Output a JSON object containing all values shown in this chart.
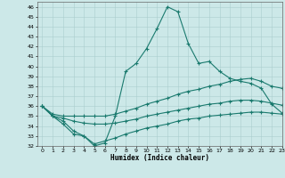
{
  "xlabel": "Humidex (Indice chaleur)",
  "xlim": [
    -0.5,
    23
  ],
  "ylim": [
    32,
    46.5
  ],
  "xticks": [
    0,
    1,
    2,
    3,
    4,
    5,
    6,
    7,
    8,
    9,
    10,
    11,
    12,
    13,
    14,
    15,
    16,
    17,
    18,
    19,
    20,
    21,
    22,
    23
  ],
  "yticks": [
    32,
    33,
    34,
    35,
    36,
    37,
    38,
    39,
    40,
    41,
    42,
    43,
    44,
    45,
    46
  ],
  "bg_color": "#cce8e8",
  "line_color": "#1a7a6e",
  "grid_color": "#aacece",
  "lines": [
    {
      "x": [
        0,
        1,
        2,
        3,
        4,
        5,
        6,
        7,
        8,
        9,
        10,
        11,
        12,
        13,
        14,
        15,
        16,
        17,
        18,
        19,
        20,
        21,
        22,
        23
      ],
      "y": [
        36.0,
        35.0,
        34.2,
        33.2,
        33.0,
        32.0,
        32.3,
        35.0,
        39.5,
        40.3,
        41.8,
        43.8,
        46.0,
        45.5,
        42.3,
        40.3,
        40.5,
        39.5,
        38.8,
        38.5,
        38.3,
        37.8,
        36.2,
        35.3
      ]
    },
    {
      "x": [
        0,
        1,
        2,
        3,
        4,
        5,
        6,
        7,
        8,
        9,
        10,
        11,
        12,
        13,
        14,
        15,
        16,
        17,
        18,
        19,
        20,
        21,
        22,
        23
      ],
      "y": [
        36.0,
        35.2,
        35.0,
        35.0,
        35.0,
        35.0,
        35.0,
        35.2,
        35.5,
        35.8,
        36.2,
        36.5,
        36.8,
        37.2,
        37.5,
        37.7,
        38.0,
        38.2,
        38.5,
        38.7,
        38.8,
        38.5,
        38.0,
        37.8
      ]
    },
    {
      "x": [
        0,
        1,
        2,
        3,
        4,
        5,
        6,
        7,
        8,
        9,
        10,
        11,
        12,
        13,
        14,
        15,
        16,
        17,
        18,
        19,
        20,
        21,
        22,
        23
      ],
      "y": [
        36.0,
        35.0,
        34.8,
        34.5,
        34.3,
        34.2,
        34.2,
        34.3,
        34.5,
        34.7,
        35.0,
        35.2,
        35.4,
        35.6,
        35.8,
        36.0,
        36.2,
        36.3,
        36.5,
        36.6,
        36.6,
        36.5,
        36.3,
        36.1
      ]
    },
    {
      "x": [
        0,
        1,
        2,
        3,
        4,
        5,
        6,
        7,
        8,
        9,
        10,
        11,
        12,
        13,
        14,
        15,
        16,
        17,
        18,
        19,
        20,
        21,
        22,
        23
      ],
      "y": [
        36.0,
        35.0,
        34.5,
        33.5,
        33.0,
        32.2,
        32.5,
        32.8,
        33.2,
        33.5,
        33.8,
        34.0,
        34.2,
        34.5,
        34.7,
        34.8,
        35.0,
        35.1,
        35.2,
        35.3,
        35.4,
        35.4,
        35.3,
        35.2
      ]
    }
  ]
}
